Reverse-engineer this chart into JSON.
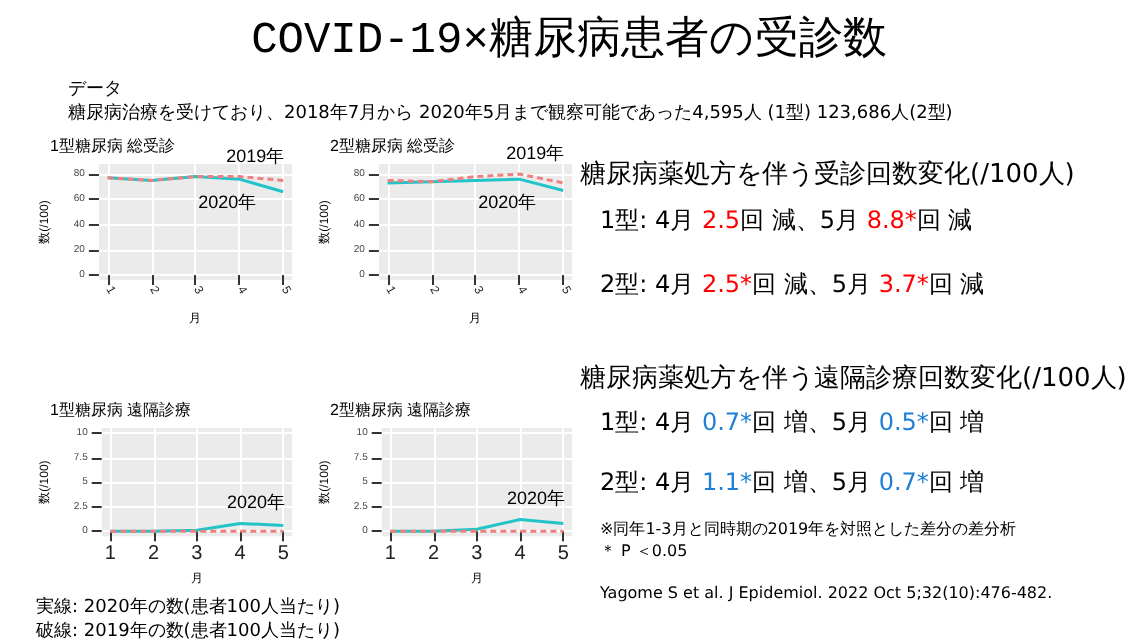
{
  "chart_data": [
    {
      "type": "other",
      "title": "COVID-19×糖尿病患者の受診数",
      "subtitle": "データ",
      "annotations": [
        "糖尿病治療を受けており、2018年7月から 2020年5月まで観察可能であった4,595人 (1型) 123,686人(2型)",
        "糖尿病薬処方を伴う受診回数変化(/100人)",
        "1型: 4月 2.5回 減、5月 8.8*回 減",
        "2型: 4月 2.5*回 減、5月 3.7*回 減",
        "糖尿病薬処方を伴う遠隔診療回数変化(/100人)",
        "1型: 4月 0.7*回 増、5月 0.5*回 増",
        "2型: 4月 1.1*回 増、5月 0.7*回 増",
        "※同年1-3月と同時期の2019年を対照とした差分の差分析",
        "＊ P ＜0.05",
        "実線: 2020年の数(患者100人当たり)",
        "破線: 2019年の数(患者100人当たり)",
        "Yagome S et al. J Epidemiol. 2022 Oct 5;32(10):476-482."
      ]
    },
    {
      "type": "line",
      "title": "1型糖尿病 総受診",
      "xlabel": "月",
      "ylabel": "数(/100)",
      "x": [
        1,
        2,
        3,
        4,
        5
      ],
      "xlim": [
        0.8,
        5.2
      ],
      "xticks": [
        1,
        2,
        3,
        4,
        5
      ],
      "ylim": [
        -4,
        88
      ],
      "yticks": [
        0,
        20,
        40,
        60,
        80
      ],
      "grid": true,
      "marker": "none",
      "series": [
        {
          "name": "2019年",
          "color": "#f08080",
          "line_style": "dashed",
          "values": [
            77,
            75,
            78,
            78,
            75
          ]
        },
        {
          "name": "2020年",
          "color": "#22c4c8",
          "line_style": "solid",
          "values": [
            77,
            75,
            78,
            76,
            66
          ]
        }
      ]
    },
    {
      "type": "line",
      "title": "2型糖尿病 総受診",
      "xlabel": "月",
      "ylabel": "数(/100)",
      "x": [
        1,
        2,
        3,
        4,
        5
      ],
      "xlim": [
        0.8,
        5.2
      ],
      "xticks": [
        1,
        2,
        3,
        4,
        5
      ],
      "ylim": [
        -4,
        88
      ],
      "yticks": [
        0,
        20,
        40,
        60,
        80
      ],
      "grid": true,
      "marker": "none",
      "series": [
        {
          "name": "2019年",
          "color": "#f08080",
          "line_style": "dashed",
          "values": [
            75,
            74,
            78,
            80,
            73
          ]
        },
        {
          "name": "2020年",
          "color": "#22c4c8",
          "line_style": "solid",
          "values": [
            73,
            74,
            75,
            76,
            67
          ]
        }
      ]
    },
    {
      "type": "line",
      "title": "1型糖尿病 遠隔診療",
      "xlabel": "月",
      "ylabel": "数(/100)",
      "x": [
        1,
        2,
        3,
        4,
        5
      ],
      "xlim": [
        0.8,
        5.2
      ],
      "xticks": [
        1,
        2,
        3,
        4,
        5
      ],
      "ylim": [
        -0.5,
        10.5
      ],
      "yticks": [
        0,
        2.5,
        5,
        7.5,
        10
      ],
      "grid": true,
      "marker": "none",
      "series": [
        {
          "color": "#f08080",
          "line_style": "dashed",
          "values": [
            0,
            0,
            0,
            0,
            0
          ]
        },
        {
          "name": "2020年",
          "color": "#22c4c8",
          "line_style": "solid",
          "values": [
            0,
            0,
            0.1,
            0.8,
            0.6
          ]
        }
      ]
    },
    {
      "type": "line",
      "title": "2型糖尿病 遠隔診療",
      "xlabel": "月",
      "ylabel": "数(/100)",
      "x": [
        1,
        2,
        3,
        4,
        5
      ],
      "xlim": [
        0.8,
        5.2
      ],
      "xticks": [
        1,
        2,
        3,
        4,
        5
      ],
      "ylim": [
        -0.5,
        10.5
      ],
      "yticks": [
        0,
        2.5,
        5,
        7.5,
        10
      ],
      "grid": true,
      "marker": "none",
      "series": [
        {
          "color": "#f08080",
          "line_style": "dashed",
          "values": [
            0,
            0,
            0,
            0,
            0
          ]
        },
        {
          "name": "2020年",
          "color": "#22c4c8",
          "line_style": "solid",
          "values": [
            0,
            0,
            0.2,
            1.2,
            0.8
          ]
        }
      ]
    }
  ]
}
